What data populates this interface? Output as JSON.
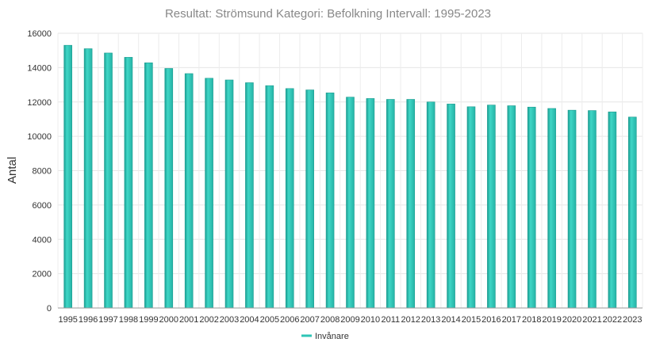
{
  "chart_data": {
    "type": "bar",
    "title": "Resultat: Strömsund Kategori: Befolkning Intervall: 1995-2023",
    "xlabel": "",
    "ylabel": "Antal",
    "ylim": [
      0,
      16000
    ],
    "yticks": [
      0,
      2000,
      4000,
      6000,
      8000,
      10000,
      12000,
      14000,
      16000
    ],
    "grid": true,
    "legend_position": "bottom",
    "categories": [
      "1995",
      "1996",
      "1997",
      "1998",
      "1999",
      "2000",
      "2001",
      "2002",
      "2003",
      "2004",
      "2005",
      "2006",
      "2007",
      "2008",
      "2009",
      "2010",
      "2011",
      "2012",
      "2013",
      "2014",
      "2015",
      "2016",
      "2017",
      "2018",
      "2019",
      "2020",
      "2021",
      "2022",
      "2023"
    ],
    "series": [
      {
        "name": "Invånare",
        "color": "#2ec4b6",
        "values": [
          15300,
          15100,
          14850,
          14600,
          14280,
          13950,
          13650,
          13380,
          13280,
          13120,
          12950,
          12780,
          12700,
          12530,
          12280,
          12200,
          12150,
          12150,
          12000,
          11880,
          11720,
          11820,
          11780,
          11700,
          11620,
          11520,
          11500,
          11420,
          11120
        ]
      }
    ]
  }
}
